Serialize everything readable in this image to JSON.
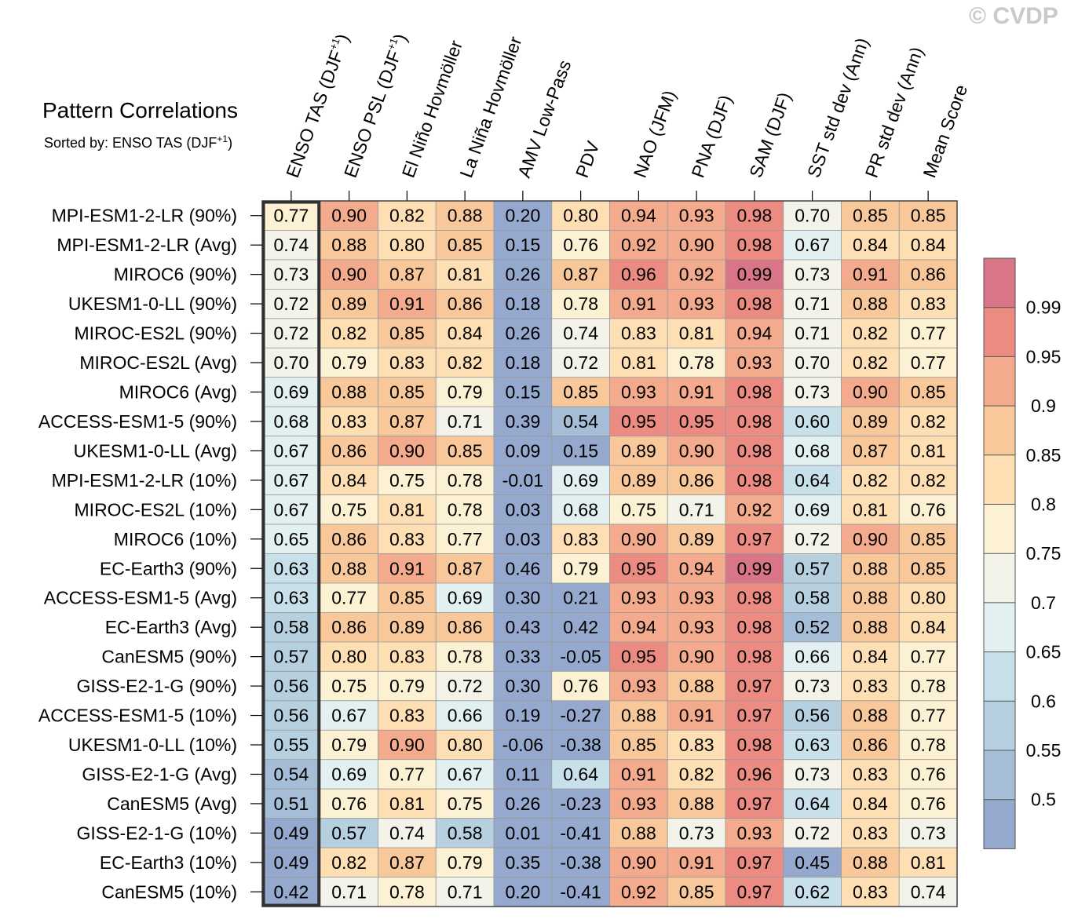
{
  "copyright": "© CVDP",
  "title": "Pattern Correlations",
  "subtitle_prefix": "Sorted by: ENSO TAS (DJF",
  "subtitle_sup": "+1",
  "subtitle_suffix": ")",
  "chart_data": {
    "type": "heatmap",
    "title": "Pattern Correlations",
    "sorted_by": "ENSO TAS (DJF+1)",
    "highlighted_column": "ENSO TAS (DJF+1)",
    "columns": [
      {
        "label": "ENSO TAS (DJF",
        "sup": "+1",
        "suffix": ")"
      },
      {
        "label": "ENSO PSL (DJF",
        "sup": "+1",
        "suffix": ")"
      },
      {
        "label": "El Niño Hovmöller"
      },
      {
        "label": "La Niña Hovmöller"
      },
      {
        "label": "AMV Low-Pass"
      },
      {
        "label": "PDV"
      },
      {
        "label": "NAO (JFM)"
      },
      {
        "label": "PNA (DJF)"
      },
      {
        "label": "SAM (DJF)"
      },
      {
        "label": "SST std dev (Ann)"
      },
      {
        "label": "PR std dev (Ann)"
      },
      {
        "label": "Mean Score"
      }
    ],
    "rows": [
      "MPI-ESM1-2-LR (90%)",
      "MPI-ESM1-2-LR (Avg)",
      "MIROC6 (90%)",
      "UKESM1-0-LL (90%)",
      "MIROC-ES2L (90%)",
      "MIROC-ES2L (Avg)",
      "MIROC6 (Avg)",
      "ACCESS-ESM1-5 (90%)",
      "UKESM1-0-LL (Avg)",
      "MPI-ESM1-2-LR (10%)",
      "MIROC-ES2L (10%)",
      "MIROC6 (10%)",
      "EC-Earth3 (90%)",
      "ACCESS-ESM1-5 (Avg)",
      "EC-Earth3 (Avg)",
      "CanESM5 (90%)",
      "GISS-E2-1-G (90%)",
      "ACCESS-ESM1-5 (10%)",
      "UKESM1-0-LL (10%)",
      "GISS-E2-1-G (Avg)",
      "CanESM5 (Avg)",
      "GISS-E2-1-G (10%)",
      "EC-Earth3 (10%)",
      "CanESM5 (10%)"
    ],
    "values": [
      [
        "0.77",
        "0.90",
        "0.82",
        "0.88",
        "0.20",
        "0.80",
        "0.94",
        "0.93",
        "0.98",
        "0.70",
        "0.85",
        "0.85"
      ],
      [
        "0.74",
        "0.88",
        "0.80",
        "0.85",
        "0.15",
        "0.76",
        "0.92",
        "0.90",
        "0.98",
        "0.67",
        "0.84",
        "0.84"
      ],
      [
        "0.73",
        "0.90",
        "0.87",
        "0.81",
        "0.26",
        "0.87",
        "0.96",
        "0.92",
        "0.99",
        "0.73",
        "0.91",
        "0.86"
      ],
      [
        "0.72",
        "0.89",
        "0.91",
        "0.86",
        "0.18",
        "0.78",
        "0.91",
        "0.93",
        "0.98",
        "0.71",
        "0.88",
        "0.83"
      ],
      [
        "0.72",
        "0.82",
        "0.85",
        "0.84",
        "0.26",
        "0.74",
        "0.83",
        "0.81",
        "0.94",
        "0.71",
        "0.82",
        "0.77"
      ],
      [
        "0.70",
        "0.79",
        "0.83",
        "0.82",
        "0.18",
        "0.72",
        "0.81",
        "0.78",
        "0.93",
        "0.70",
        "0.82",
        "0.77"
      ],
      [
        "0.69",
        "0.88",
        "0.85",
        "0.79",
        "0.15",
        "0.85",
        "0.93",
        "0.91",
        "0.98",
        "0.73",
        "0.90",
        "0.85"
      ],
      [
        "0.68",
        "0.83",
        "0.87",
        "0.71",
        "0.39",
        "0.54",
        "0.95",
        "0.95",
        "0.98",
        "0.60",
        "0.89",
        "0.82"
      ],
      [
        "0.67",
        "0.86",
        "0.90",
        "0.85",
        "0.09",
        "0.15",
        "0.89",
        "0.90",
        "0.98",
        "0.68",
        "0.87",
        "0.81"
      ],
      [
        "0.67",
        "0.84",
        "0.75",
        "0.78",
        "-0.01",
        "0.69",
        "0.89",
        "0.86",
        "0.98",
        "0.64",
        "0.82",
        "0.82"
      ],
      [
        "0.67",
        "0.75",
        "0.81",
        "0.78",
        "0.03",
        "0.68",
        "0.75",
        "0.71",
        "0.92",
        "0.69",
        "0.81",
        "0.76"
      ],
      [
        "0.65",
        "0.86",
        "0.83",
        "0.77",
        "0.03",
        "0.83",
        "0.90",
        "0.89",
        "0.97",
        "0.72",
        "0.90",
        "0.85"
      ],
      [
        "0.63",
        "0.88",
        "0.91",
        "0.87",
        "0.46",
        "0.79",
        "0.95",
        "0.94",
        "0.99",
        "0.57",
        "0.88",
        "0.85"
      ],
      [
        "0.63",
        "0.77",
        "0.85",
        "0.69",
        "0.30",
        "0.21",
        "0.93",
        "0.93",
        "0.98",
        "0.58",
        "0.88",
        "0.80"
      ],
      [
        "0.58",
        "0.86",
        "0.89",
        "0.86",
        "0.43",
        "0.42",
        "0.94",
        "0.93",
        "0.98",
        "0.52",
        "0.88",
        "0.84"
      ],
      [
        "0.57",
        "0.80",
        "0.83",
        "0.78",
        "0.33",
        "-0.05",
        "0.95",
        "0.90",
        "0.98",
        "0.66",
        "0.84",
        "0.77"
      ],
      [
        "0.56",
        "0.75",
        "0.79",
        "0.72",
        "0.30",
        "0.76",
        "0.93",
        "0.88",
        "0.97",
        "0.73",
        "0.83",
        "0.78"
      ],
      [
        "0.56",
        "0.67",
        "0.83",
        "0.66",
        "0.19",
        "-0.27",
        "0.88",
        "0.91",
        "0.97",
        "0.56",
        "0.88",
        "0.77"
      ],
      [
        "0.55",
        "0.79",
        "0.90",
        "0.80",
        "-0.06",
        "-0.38",
        "0.85",
        "0.83",
        "0.98",
        "0.63",
        "0.86",
        "0.78"
      ],
      [
        "0.54",
        "0.69",
        "0.77",
        "0.67",
        "0.11",
        "0.64",
        "0.91",
        "0.82",
        "0.96",
        "0.73",
        "0.83",
        "0.76"
      ],
      [
        "0.51",
        "0.76",
        "0.81",
        "0.75",
        "0.26",
        "-0.23",
        "0.93",
        "0.88",
        "0.97",
        "0.64",
        "0.84",
        "0.76"
      ],
      [
        "0.49",
        "0.57",
        "0.74",
        "0.58",
        "0.01",
        "-0.41",
        "0.88",
        "0.73",
        "0.93",
        "0.72",
        "0.83",
        "0.73"
      ],
      [
        "0.49",
        "0.82",
        "0.87",
        "0.79",
        "0.35",
        "-0.38",
        "0.90",
        "0.91",
        "0.97",
        "0.45",
        "0.88",
        "0.81"
      ],
      [
        "0.42",
        "0.71",
        "0.78",
        "0.71",
        "0.20",
        "-0.41",
        "0.92",
        "0.85",
        "0.97",
        "0.62",
        "0.83",
        "0.74"
      ]
    ],
    "colorbar": {
      "levels": [
        "0.5",
        "0.55",
        "0.6",
        "0.65",
        "0.7",
        "0.75",
        "0.8",
        "0.85",
        "0.9",
        "0.95",
        "0.99"
      ],
      "colors": [
        "#95a8cd",
        "#a6bdd7",
        "#b6d0e0",
        "#c8e0ea",
        "#e3f0f2",
        "#f3f3ea",
        "#fdf1d3",
        "#fddfb3",
        "#f8c89b",
        "#f4aa8c",
        "#ec8b82",
        "#d87586"
      ]
    }
  }
}
